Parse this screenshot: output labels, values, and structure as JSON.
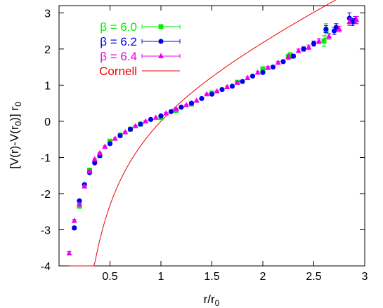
{
  "chart_data": {
    "type": "scatter",
    "xlabel": "r/r",
    "xlabel_sub": "0",
    "ylabel": "[V(r)-V(r",
    "ylabel_sub": "0",
    "ylabel_end": ")] r",
    "ylabel_sub2": "0",
    "xlim": [
      0,
      3
    ],
    "ylim": [
      -4,
      3.2
    ],
    "xticks": [
      {
        "value": 0.5,
        "label": "0.5"
      },
      {
        "value": 1,
        "label": "1"
      },
      {
        "value": 1.5,
        "label": "1.5"
      },
      {
        "value": 2,
        "label": "2"
      },
      {
        "value": 2.5,
        "label": "2.5"
      },
      {
        "value": 3,
        "label": "3"
      }
    ],
    "yticks": [
      {
        "value": -4,
        "label": "-4"
      },
      {
        "value": -3,
        "label": "-3"
      },
      {
        "value": -2,
        "label": "-2"
      },
      {
        "value": -1,
        "label": "-1"
      },
      {
        "value": 0,
        "label": "0"
      },
      {
        "value": 1,
        "label": "1"
      },
      {
        "value": 2,
        "label": "2"
      },
      {
        "value": 3,
        "label": "3"
      }
    ],
    "grid": false,
    "legend_position": "top-left",
    "series": [
      {
        "name": "β = 6.0",
        "color": "#00ee00",
        "marker": "square",
        "points": [
          {
            "x": 0.2,
            "y": -2.35,
            "e": 0.05
          },
          {
            "x": 0.3,
            "y": -1.35,
            "e": 0.03
          },
          {
            "x": 0.4,
            "y": -0.95,
            "e": 0.02
          },
          {
            "x": 0.5,
            "y": -0.55,
            "e": 0.02
          },
          {
            "x": 0.6,
            "y": -0.38,
            "e": 0.02
          },
          {
            "x": 0.7,
            "y": -0.22,
            "e": 0.02
          },
          {
            "x": 0.8,
            "y": -0.08,
            "e": 0.02
          },
          {
            "x": 1.0,
            "y": 0.1,
            "e": 0.02
          },
          {
            "x": 1.15,
            "y": 0.3,
            "e": 0.02
          },
          {
            "x": 1.3,
            "y": 0.48,
            "e": 0.02
          },
          {
            "x": 1.5,
            "y": 0.78,
            "e": 0.02
          },
          {
            "x": 1.75,
            "y": 1.08,
            "e": 0.02
          },
          {
            "x": 2.0,
            "y": 1.45,
            "e": 0.04
          },
          {
            "x": 2.25,
            "y": 1.78,
            "e": 0.08
          },
          {
            "x": 2.27,
            "y": 1.82,
            "e": 0.08
          },
          {
            "x": 2.6,
            "y": 2.22,
            "e": 0.15
          },
          {
            "x": 2.62,
            "y": 2.5,
            "e": 0.2
          }
        ]
      },
      {
        "name": "β = 6.2",
        "color": "#0000ee",
        "marker": "circle",
        "points": [
          {
            "x": 0.15,
            "y": -2.95,
            "e": 0.05
          },
          {
            "x": 0.2,
            "y": -2.2,
            "e": 0.03
          },
          {
            "x": 0.25,
            "y": -1.75,
            "e": 0.02
          },
          {
            "x": 0.3,
            "y": -1.42,
            "e": 0.02
          },
          {
            "x": 0.35,
            "y": -1.15,
            "e": 0.02
          },
          {
            "x": 0.4,
            "y": -0.95,
            "e": 0.02
          },
          {
            "x": 0.5,
            "y": -0.62,
            "e": 0.02
          },
          {
            "x": 0.6,
            "y": -0.4,
            "e": 0.02
          },
          {
            "x": 0.7,
            "y": -0.22,
            "e": 0.02
          },
          {
            "x": 0.8,
            "y": -0.08,
            "e": 0.02
          },
          {
            "x": 0.9,
            "y": 0.05,
            "e": 0.02
          },
          {
            "x": 1.0,
            "y": 0.15,
            "e": 0.02
          },
          {
            "x": 1.1,
            "y": 0.27,
            "e": 0.02
          },
          {
            "x": 1.2,
            "y": 0.39,
            "e": 0.02
          },
          {
            "x": 1.3,
            "y": 0.5,
            "e": 0.02
          },
          {
            "x": 1.4,
            "y": 0.63,
            "e": 0.02
          },
          {
            "x": 1.5,
            "y": 0.75,
            "e": 0.02
          },
          {
            "x": 1.6,
            "y": 0.88,
            "e": 0.02
          },
          {
            "x": 1.7,
            "y": 0.97,
            "e": 0.03
          },
          {
            "x": 1.8,
            "y": 1.1,
            "e": 0.03
          },
          {
            "x": 1.9,
            "y": 1.25,
            "e": 0.03
          },
          {
            "x": 2.0,
            "y": 1.35,
            "e": 0.03
          },
          {
            "x": 2.1,
            "y": 1.5,
            "e": 0.04
          },
          {
            "x": 2.2,
            "y": 1.65,
            "e": 0.04
          },
          {
            "x": 2.3,
            "y": 1.8,
            "e": 0.05
          },
          {
            "x": 2.4,
            "y": 2.0,
            "e": 0.06
          },
          {
            "x": 2.5,
            "y": 2.15,
            "e": 0.07
          },
          {
            "x": 2.62,
            "y": 2.55,
            "e": 0.1
          },
          {
            "x": 2.7,
            "y": 2.5,
            "e": 0.1
          },
          {
            "x": 2.72,
            "y": 2.6,
            "e": 0.1
          },
          {
            "x": 2.85,
            "y": 2.85,
            "e": 0.15
          },
          {
            "x": 2.88,
            "y": 2.75,
            "e": 0.1
          },
          {
            "x": 2.91,
            "y": 2.8,
            "e": 0.1
          }
        ]
      },
      {
        "name": "β = 6.4",
        "color": "#ee00ee",
        "marker": "triangle",
        "points": [
          {
            "x": 0.1,
            "y": -3.65,
            "e": 0.05
          },
          {
            "x": 0.15,
            "y": -2.75,
            "e": 0.04
          },
          {
            "x": 0.2,
            "y": -2.3,
            "e": 0.03
          },
          {
            "x": 0.25,
            "y": -1.8,
            "e": 0.02
          },
          {
            "x": 0.3,
            "y": -1.38,
            "e": 0.02
          },
          {
            "x": 0.35,
            "y": -1.05,
            "e": 0.02
          },
          {
            "x": 0.4,
            "y": -0.88,
            "e": 0.02
          },
          {
            "x": 0.45,
            "y": -0.7,
            "e": 0.02
          },
          {
            "x": 0.55,
            "y": -0.48,
            "e": 0.02
          },
          {
            "x": 0.65,
            "y": -0.3,
            "e": 0.02
          },
          {
            "x": 0.75,
            "y": -0.13,
            "e": 0.02
          },
          {
            "x": 0.85,
            "y": 0.0,
            "e": 0.02
          },
          {
            "x": 0.95,
            "y": 0.1,
            "e": 0.02
          },
          {
            "x": 1.05,
            "y": 0.22,
            "e": 0.02
          },
          {
            "x": 1.15,
            "y": 0.34,
            "e": 0.02
          },
          {
            "x": 1.25,
            "y": 0.45,
            "e": 0.02
          },
          {
            "x": 1.35,
            "y": 0.57,
            "e": 0.02
          },
          {
            "x": 1.45,
            "y": 0.75,
            "e": 0.02
          },
          {
            "x": 1.55,
            "y": 0.83,
            "e": 0.02
          },
          {
            "x": 1.65,
            "y": 0.95,
            "e": 0.03
          },
          {
            "x": 1.75,
            "y": 1.07,
            "e": 0.03
          },
          {
            "x": 1.85,
            "y": 1.2,
            "e": 0.03
          },
          {
            "x": 1.95,
            "y": 1.35,
            "e": 0.03
          },
          {
            "x": 2.05,
            "y": 1.48,
            "e": 0.04
          },
          {
            "x": 2.15,
            "y": 1.62,
            "e": 0.04
          },
          {
            "x": 2.25,
            "y": 1.78,
            "e": 0.05
          },
          {
            "x": 2.35,
            "y": 1.95,
            "e": 0.05
          },
          {
            "x": 2.45,
            "y": 2.05,
            "e": 0.06
          },
          {
            "x": 2.55,
            "y": 2.22,
            "e": 0.07
          },
          {
            "x": 2.65,
            "y": 2.35,
            "e": 0.08
          },
          {
            "x": 2.75,
            "y": 2.55,
            "e": 0.08
          },
          {
            "x": 2.85,
            "y": 2.75,
            "e": 0.1
          },
          {
            "x": 2.92,
            "y": 2.8,
            "e": 0.1
          }
        ]
      },
      {
        "name": "Cornell",
        "color": "#ee0000",
        "marker": "line",
        "function": "1.65*(1 - 1/x) + 1.35*(x - 1)",
        "x_range": [
          0.1,
          3.0
        ]
      }
    ]
  }
}
